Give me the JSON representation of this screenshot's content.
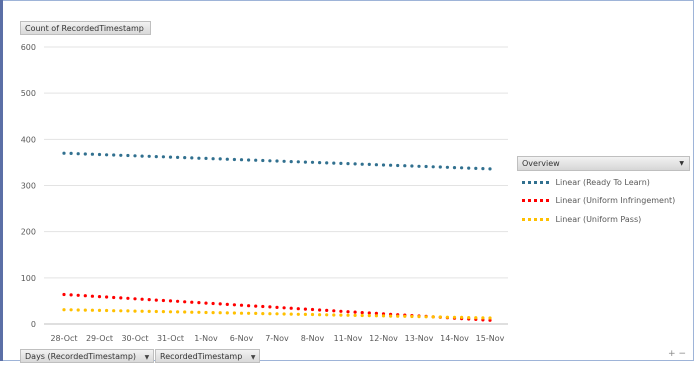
{
  "chart_data": {
    "type": "line",
    "title": "",
    "ylabel": "",
    "xlabel": "",
    "categories": [
      "28-Oct",
      "29-Oct",
      "30-Oct",
      "31-Oct",
      "1-Nov",
      "6-Nov",
      "7-Nov",
      "8-Nov",
      "11-Nov",
      "12-Nov",
      "13-Nov",
      "14-Nov",
      "15-Nov"
    ],
    "ylim": [
      0,
      600
    ],
    "yticks": [
      0,
      100,
      200,
      300,
      400,
      500,
      600
    ],
    "grid": true,
    "legend_position": "right",
    "series": [
      {
        "name": "Linear (Ready To Learn)",
        "color": "#31708f",
        "start": 370,
        "end": 336
      },
      {
        "name": "Linear (Uniform Infringement)",
        "color": "#ff0000",
        "start": 64,
        "end": 8
      },
      {
        "name": "Linear (Uniform Pass)",
        "color": "#ffc000",
        "start": 31,
        "end": 13
      }
    ]
  },
  "pivot": {
    "value_field": "Count of RecordedTimestamp",
    "row_field_1": "Days (RecordedTimestamp)",
    "row_field_2": "RecordedTimestamp",
    "dropdown_arrow": "▼"
  },
  "legend": {
    "header": "Overview",
    "dropdown_arrow": "▼"
  },
  "controls": {
    "expand": "+",
    "collapse": "−"
  }
}
